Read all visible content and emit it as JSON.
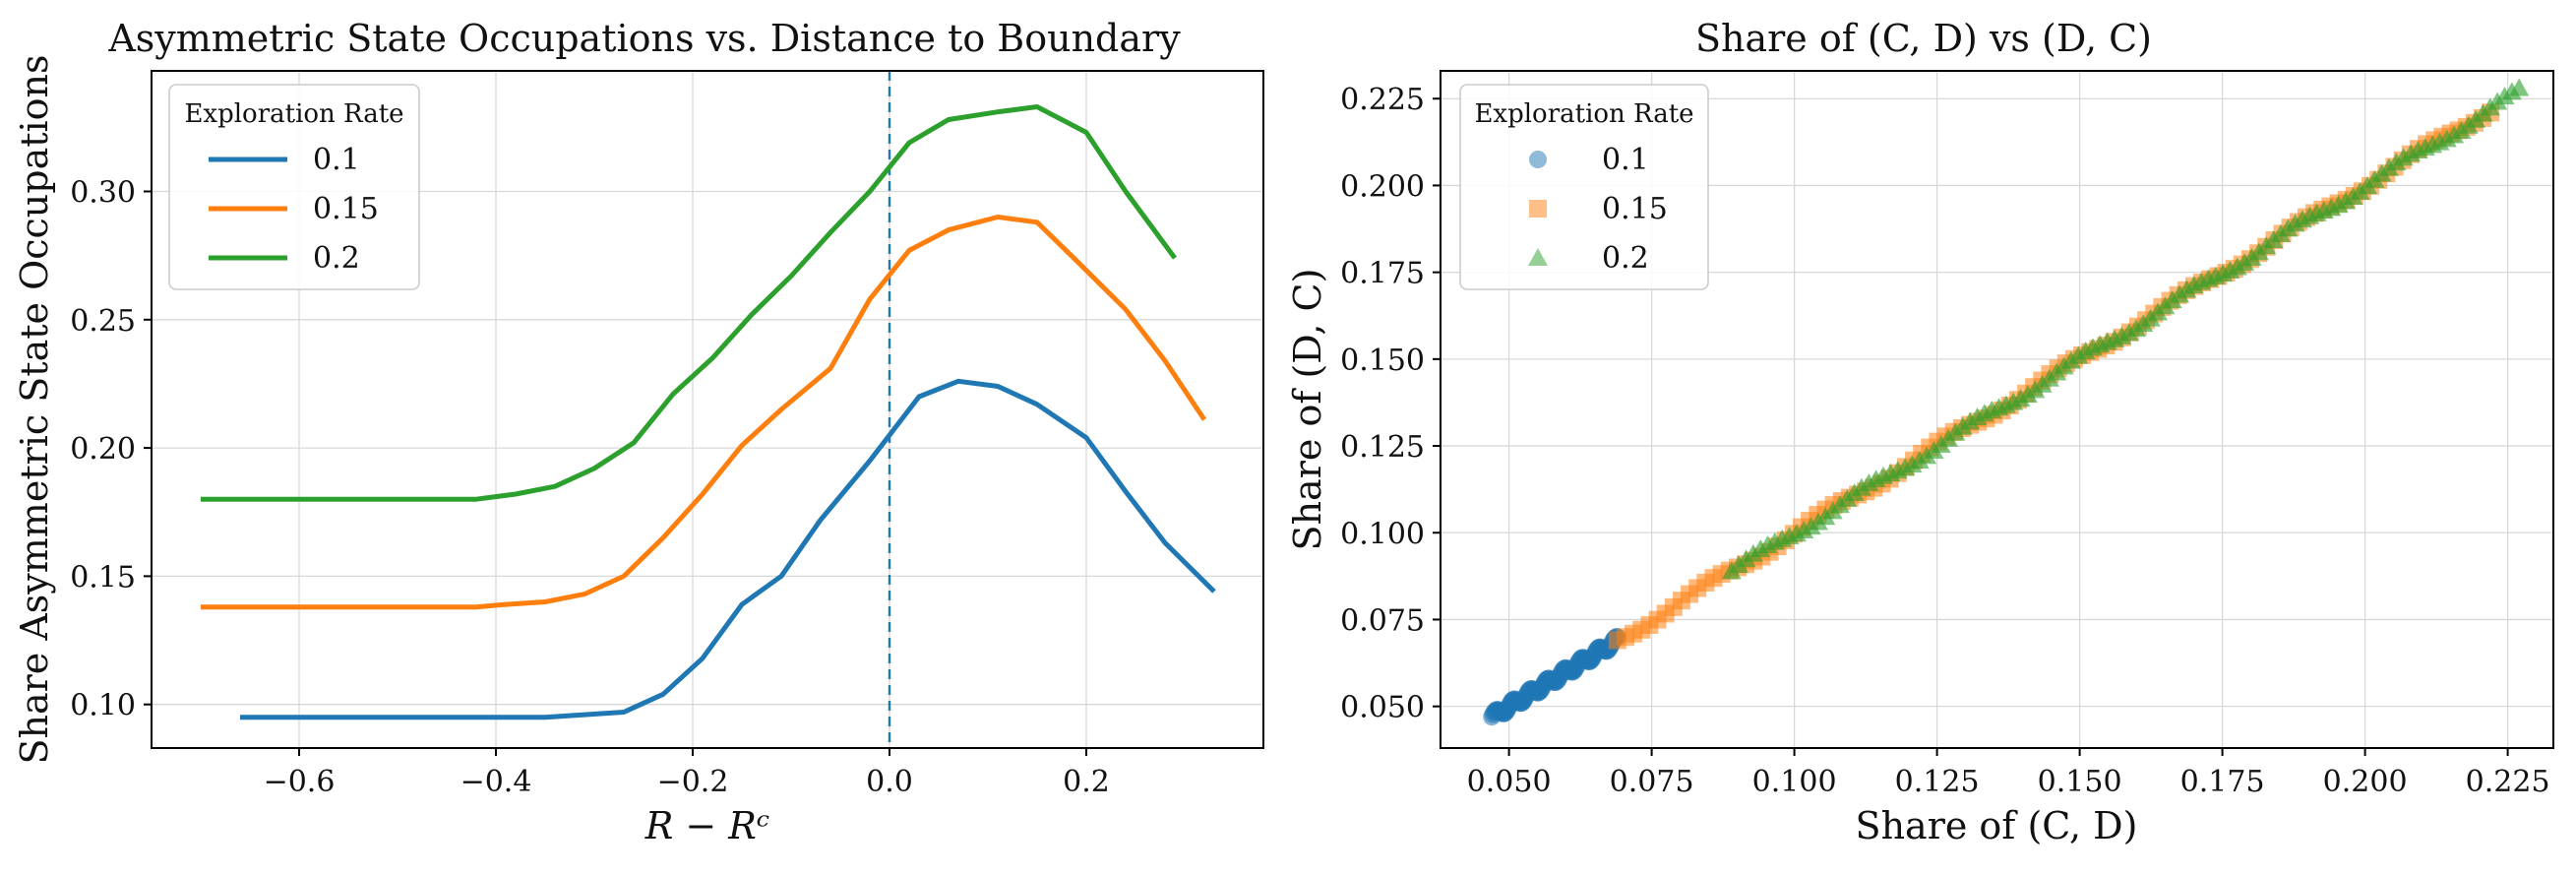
{
  "chart_data": [
    {
      "type": "line",
      "title": "Asymmetric State Occupations vs. Distance to Boundary",
      "xlabel": "R − Rᶜ",
      "ylabel": "Share Asymmetric State Occupations",
      "xlim": [
        -0.75,
        0.38
      ],
      "ylim": [
        0.083,
        0.347
      ],
      "xticks": [
        -0.6,
        -0.4,
        -0.2,
        0.0,
        0.2
      ],
      "xtick_labels": [
        "−0.6",
        "−0.4",
        "−0.2",
        "0.0",
        "0.2"
      ],
      "yticks": [
        0.1,
        0.15,
        0.2,
        0.25,
        0.3
      ],
      "ytick_labels": [
        "0.10",
        "0.15",
        "0.20",
        "0.25",
        "0.30"
      ],
      "grid": true,
      "vline": {
        "x": 0.0,
        "style": "dashed",
        "color": "#1f77b4"
      },
      "legend": {
        "title": "Exploration Rate",
        "placement": "top-left"
      },
      "series": [
        {
          "name": "0.1",
          "color": "#1f77b4",
          "x": [
            -0.66,
            -0.62,
            -0.58,
            -0.54,
            -0.5,
            -0.46,
            -0.42,
            -0.38,
            -0.35,
            -0.31,
            -0.27,
            -0.23,
            -0.19,
            -0.15,
            -0.11,
            -0.07,
            -0.02,
            0.03,
            0.07,
            0.11,
            0.15,
            0.2,
            0.24,
            0.28,
            0.33
          ],
          "y": [
            0.095,
            0.095,
            0.095,
            0.095,
            0.095,
            0.095,
            0.095,
            0.095,
            0.095,
            0.096,
            0.097,
            0.104,
            0.118,
            0.139,
            0.15,
            0.172,
            0.195,
            0.22,
            0.226,
            0.224,
            0.217,
            0.204,
            0.183,
            0.163,
            0.144
          ]
        },
        {
          "name": "0.15",
          "color": "#ff7f0e",
          "x": [
            -0.7,
            -0.66,
            -0.62,
            -0.58,
            -0.54,
            -0.5,
            -0.46,
            -0.42,
            -0.39,
            -0.35,
            -0.31,
            -0.27,
            -0.23,
            -0.19,
            -0.15,
            -0.11,
            -0.06,
            -0.02,
            0.02,
            0.06,
            0.11,
            0.15,
            0.19,
            0.24,
            0.28,
            0.32
          ],
          "y": [
            0.138,
            0.138,
            0.138,
            0.138,
            0.138,
            0.138,
            0.138,
            0.138,
            0.139,
            0.14,
            0.143,
            0.15,
            0.165,
            0.182,
            0.201,
            0.215,
            0.231,
            0.258,
            0.277,
            0.285,
            0.29,
            0.288,
            0.273,
            0.254,
            0.234,
            0.211
          ]
        },
        {
          "name": "0.2",
          "color": "#2ca02c",
          "x": [
            -0.7,
            -0.66,
            -0.62,
            -0.58,
            -0.54,
            -0.5,
            -0.46,
            -0.42,
            -0.38,
            -0.34,
            -0.3,
            -0.26,
            -0.22,
            -0.18,
            -0.14,
            -0.1,
            -0.06,
            -0.02,
            0.02,
            0.06,
            0.11,
            0.15,
            0.2,
            0.24,
            0.29
          ],
          "y": [
            0.18,
            0.18,
            0.18,
            0.18,
            0.18,
            0.18,
            0.18,
            0.18,
            0.182,
            0.185,
            0.192,
            0.202,
            0.221,
            0.235,
            0.252,
            0.267,
            0.284,
            0.3,
            0.319,
            0.328,
            0.331,
            0.333,
            0.323,
            0.3,
            0.274
          ]
        }
      ]
    },
    {
      "type": "scatter",
      "title": "Share of (C, D) vs (D, C)",
      "xlabel": "Share of (C, D)",
      "ylabel": "Share of (D, C)",
      "xlim": [
        0.038,
        0.233
      ],
      "ylim": [
        0.038,
        0.233
      ],
      "xticks": [
        0.05,
        0.075,
        0.1,
        0.125,
        0.15,
        0.175,
        0.2,
        0.225
      ],
      "xtick_labels": [
        "0.050",
        "0.075",
        "0.100",
        "0.125",
        "0.150",
        "0.175",
        "0.200",
        "0.225"
      ],
      "yticks": [
        0.05,
        0.075,
        0.1,
        0.125,
        0.15,
        0.175,
        0.2,
        0.225
      ],
      "ytick_labels": [
        "0.050",
        "0.075",
        "0.100",
        "0.125",
        "0.150",
        "0.175",
        "0.200",
        "0.225"
      ],
      "grid": true,
      "legend": {
        "title": "Exploration Rate",
        "placement": "top-left"
      },
      "series": [
        {
          "name": "0.1",
          "color": "#1f77b4",
          "marker": "circle",
          "x_range": [
            0.047,
            0.069
          ]
        },
        {
          "name": "0.15",
          "color": "#ff7f0e",
          "marker": "square",
          "x_range": [
            0.069,
            0.222
          ]
        },
        {
          "name": "0.2",
          "color": "#2ca02c",
          "marker": "triangle",
          "x_range": [
            0.089,
            0.227
          ]
        }
      ]
    }
  ]
}
